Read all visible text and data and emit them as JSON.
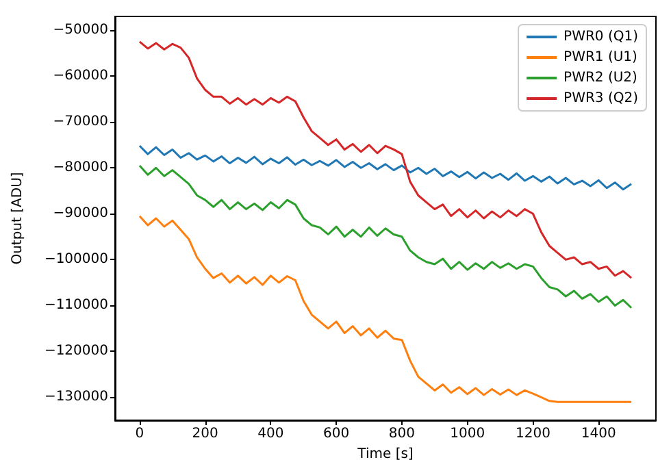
{
  "chart_data": {
    "type": "line",
    "xlabel": "Time [s]",
    "ylabel": "Output [ADU]",
    "x": [
      0,
      25,
      50,
      75,
      100,
      125,
      150,
      175,
      200,
      225,
      250,
      275,
      300,
      325,
      350,
      375,
      400,
      425,
      450,
      475,
      500,
      525,
      550,
      575,
      600,
      625,
      650,
      675,
      700,
      725,
      750,
      775,
      800,
      825,
      850,
      875,
      900,
      925,
      950,
      975,
      1000,
      1025,
      1050,
      1075,
      1100,
      1125,
      1150,
      1175,
      1200,
      1225,
      1250,
      1275,
      1300,
      1325,
      1350,
      1375,
      1400,
      1425,
      1450,
      1475,
      1500
    ],
    "series": [
      {
        "name": "PWR0 (Q1)",
        "color": "#1f77b4",
        "values": [
          -75200,
          -77000,
          -75500,
          -77200,
          -76000,
          -77800,
          -76800,
          -78200,
          -77300,
          -78600,
          -77500,
          -79000,
          -77800,
          -78900,
          -77600,
          -79200,
          -78000,
          -79000,
          -77700,
          -79300,
          -78200,
          -79400,
          -78500,
          -79500,
          -78300,
          -79800,
          -78700,
          -80000,
          -79000,
          -80300,
          -79200,
          -80500,
          -79500,
          -81000,
          -80000,
          -81300,
          -80200,
          -81800,
          -80800,
          -82000,
          -80900,
          -82300,
          -81000,
          -82200,
          -81300,
          -82600,
          -81200,
          -82800,
          -81800,
          -83000,
          -81900,
          -83400,
          -82200,
          -83600,
          -82800,
          -84000,
          -82700,
          -84400,
          -83200,
          -84700,
          -83500
        ]
      },
      {
        "name": "PWR1 (U1)",
        "color": "#ff7f0e",
        "values": [
          -90500,
          -92500,
          -91000,
          -92800,
          -91500,
          -93500,
          -95500,
          -99500,
          -102000,
          -104000,
          -103000,
          -105000,
          -103500,
          -105200,
          -103800,
          -105500,
          -103500,
          -105000,
          -103600,
          -104500,
          -109000,
          -112000,
          -113500,
          -115000,
          -113500,
          -116000,
          -114500,
          -116500,
          -115000,
          -117000,
          -115500,
          -117200,
          -117500,
          -122000,
          -125500,
          -127000,
          -128500,
          -127200,
          -129000,
          -127800,
          -129300,
          -128000,
          -129500,
          -128200,
          -129400,
          -128300,
          -129500,
          -128500,
          -129200,
          -130000,
          -130800,
          -131000,
          -131000,
          -131000,
          -131000,
          -131000,
          -131000,
          -131000,
          -131000,
          -131000,
          -131000
        ]
      },
      {
        "name": "PWR2 (U2)",
        "color": "#2ca02c",
        "values": [
          -79500,
          -81500,
          -80000,
          -81800,
          -80500,
          -82000,
          -83500,
          -86000,
          -87000,
          -88500,
          -87000,
          -89000,
          -87500,
          -89000,
          -87800,
          -89200,
          -87500,
          -88800,
          -87000,
          -88000,
          -91000,
          -92500,
          -93000,
          -94500,
          -92800,
          -95000,
          -93500,
          -95000,
          -93000,
          -94800,
          -93200,
          -94500,
          -95000,
          -98000,
          -99500,
          -100500,
          -101000,
          -99800,
          -102000,
          -100500,
          -102200,
          -100800,
          -102000,
          -100500,
          -101800,
          -100800,
          -102000,
          -101000,
          -101500,
          -104000,
          -106000,
          -106500,
          -108000,
          -106800,
          -108500,
          -107500,
          -109200,
          -108000,
          -110000,
          -108800,
          -110500
        ]
      },
      {
        "name": "PWR3 (Q2)",
        "color": "#d62728",
        "values": [
          -52500,
          -54000,
          -52800,
          -54200,
          -53000,
          -53800,
          -56000,
          -60500,
          -63000,
          -64500,
          -64500,
          -66000,
          -64800,
          -66200,
          -65000,
          -66200,
          -64800,
          -65800,
          -64500,
          -65500,
          -69000,
          -72000,
          -73500,
          -75000,
          -73800,
          -76000,
          -74800,
          -76500,
          -75000,
          -76800,
          -75200,
          -76000,
          -77000,
          -83000,
          -86000,
          -87500,
          -89000,
          -88000,
          -90500,
          -89000,
          -90800,
          -89300,
          -91000,
          -89500,
          -90800,
          -89300,
          -90500,
          -89000,
          -90000,
          -94000,
          -97000,
          -98500,
          -100000,
          -99500,
          -101000,
          -100500,
          -102000,
          -101500,
          -103500,
          -102500,
          -104000
        ]
      }
    ],
    "xlim": [
      -75,
      1575
    ],
    "xticks": [
      0,
      200,
      400,
      600,
      800,
      1000,
      1200,
      1400
    ],
    "ylim": [
      -135000,
      -47000
    ],
    "yticks": [
      {
        "value": -130000,
        "label": "−130000"
      },
      {
        "value": -120000,
        "label": "−120000"
      },
      {
        "value": -110000,
        "label": "−110000"
      },
      {
        "value": -100000,
        "label": "−100000"
      },
      {
        "value": -90000,
        "label": "−90000"
      },
      {
        "value": -80000,
        "label": "−80000"
      },
      {
        "value": -70000,
        "label": "−70000"
      },
      {
        "value": -60000,
        "label": "−60000"
      },
      {
        "value": -50000,
        "label": "−50000"
      }
    ],
    "legend": "top right",
    "grid": false,
    "marker": "none",
    "line_style": "solid"
  }
}
